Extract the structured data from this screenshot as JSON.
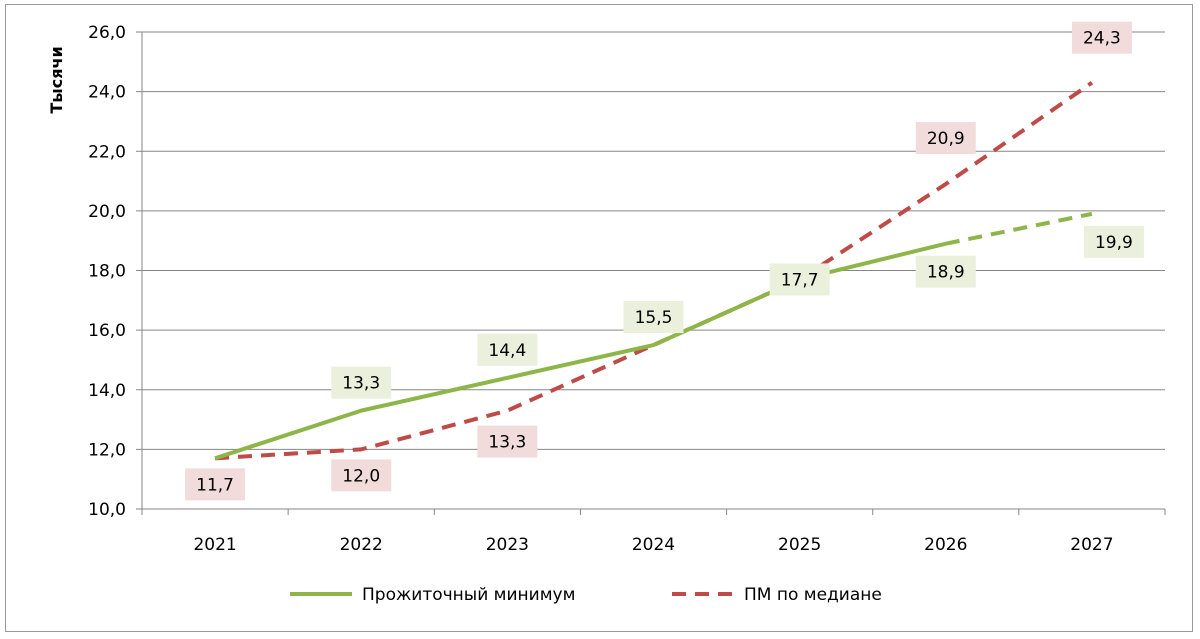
{
  "chart_data": {
    "type": "line",
    "ylabel": "Тысячи",
    "xlabel": "",
    "categories": [
      "2021",
      "2022",
      "2023",
      "2024",
      "2025",
      "2026",
      "2027"
    ],
    "ylim": [
      10.0,
      26.0
    ],
    "ytick_step": 2.0,
    "yticks": [
      "10,0",
      "12,0",
      "14,0",
      "16,0",
      "18,0",
      "20,0",
      "22,0",
      "24,0",
      "26,0"
    ],
    "grid": true,
    "legend_position": "bottom",
    "series": [
      {
        "name": "Прожиточный минимум",
        "color": "#8db548",
        "label_bg": "#eaf0dc",
        "dashed_from_index": 5,
        "values": [
          11.7,
          13.3,
          14.4,
          15.5,
          17.7,
          18.9,
          19.9
        ],
        "labels": [
          null,
          "13,3",
          "14,4",
          "15,5",
          "17,7",
          "18,9",
          "19,9"
        ]
      },
      {
        "name": "ПМ по медиане",
        "color": "#be4b48",
        "label_bg": "#f2dcdb",
        "dashed": true,
        "values": [
          11.7,
          12.0,
          13.3,
          15.5,
          17.7,
          20.9,
          24.3
        ],
        "labels": [
          "11,7",
          "12,0",
          "13,3",
          null,
          null,
          "20,9",
          "24,3"
        ]
      }
    ]
  }
}
